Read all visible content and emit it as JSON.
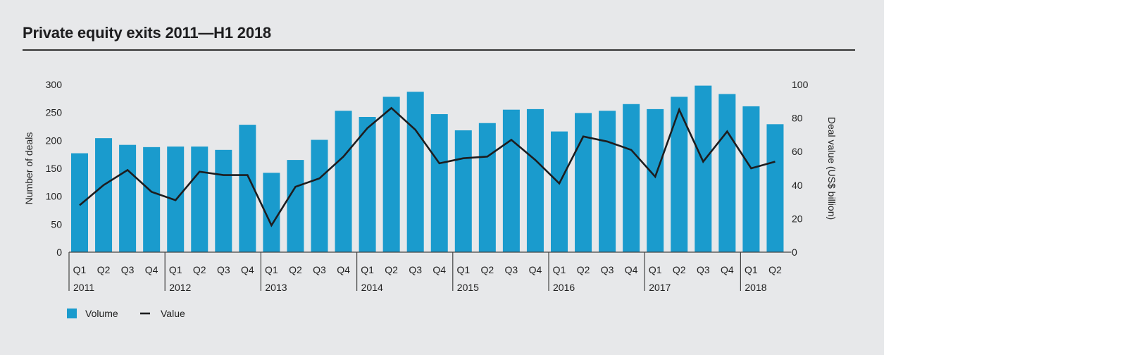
{
  "chart_data": {
    "type": "bar+line",
    "title": "Private equity exits 2011—H1 2018",
    "ylabel": "Number of deals",
    "y2label": "Deal value (US$ billion)",
    "ylim": [
      0,
      300
    ],
    "y2lim": [
      0,
      100
    ],
    "yticks": [
      0,
      50,
      100,
      150,
      200,
      250,
      300
    ],
    "y2ticks": [
      0,
      20,
      40,
      60,
      80,
      100
    ],
    "quarters": [
      "Q1",
      "Q2",
      "Q3",
      "Q4",
      "Q1",
      "Q2",
      "Q3",
      "Q4",
      "Q1",
      "Q2",
      "Q3",
      "Q4",
      "Q1",
      "Q2",
      "Q3",
      "Q4",
      "Q1",
      "Q2",
      "Q3",
      "Q4",
      "Q1",
      "Q2",
      "Q3",
      "Q4",
      "Q1",
      "Q2",
      "Q3",
      "Q4",
      "Q1",
      "Q2"
    ],
    "years": [
      "2011",
      "2012",
      "2013",
      "2014",
      "2015",
      "2016",
      "2017",
      "2018"
    ],
    "grid": false,
    "legend_position": "bottom-left",
    "series": [
      {
        "name": "Volume",
        "type": "bar",
        "axis": "left",
        "color": "#1a9bcd",
        "values": [
          177,
          204,
          192,
          188,
          189,
          189,
          183,
          228,
          142,
          165,
          201,
          253,
          242,
          278,
          287,
          247,
          218,
          231,
          255,
          256,
          216,
          249,
          253,
          265,
          256,
          278,
          298,
          283,
          261,
          229
        ]
      },
      {
        "name": "Value",
        "type": "line",
        "axis": "right",
        "color": "#1d1d1f",
        "values": [
          28,
          40,
          49,
          36,
          31,
          48,
          46,
          46,
          16,
          39,
          44,
          57,
          74,
          86,
          73,
          53,
          56,
          57,
          67,
          55,
          41,
          69,
          66,
          61,
          45,
          85,
          54,
          72,
          50,
          54
        ]
      }
    ]
  }
}
